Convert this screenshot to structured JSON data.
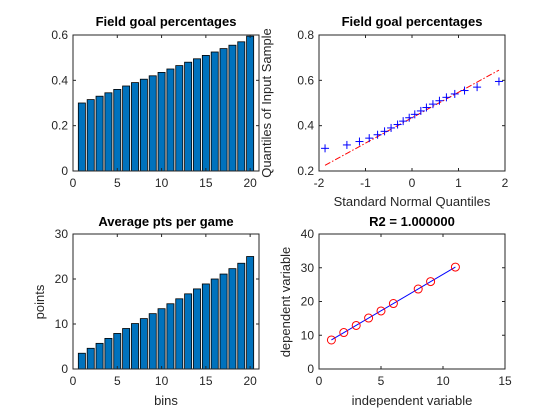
{
  "chart_data": [
    {
      "type": "bar",
      "title": "Field goal percentages",
      "xlabel": "",
      "ylabel": "",
      "x": [
        1,
        2,
        3,
        4,
        5,
        6,
        7,
        8,
        9,
        10,
        11,
        12,
        13,
        14,
        15,
        16,
        17,
        18,
        19,
        20
      ],
      "values": [
        0.3,
        0.315,
        0.33,
        0.345,
        0.36,
        0.375,
        0.39,
        0.405,
        0.42,
        0.435,
        0.45,
        0.465,
        0.48,
        0.495,
        0.51,
        0.525,
        0.54,
        0.555,
        0.57,
        0.595
      ],
      "xlim": [
        0,
        21
      ],
      "ylim": [
        0,
        0.6
      ],
      "xticks": [
        "0",
        "5",
        "10",
        "15",
        "20"
      ],
      "yticks": [
        "0",
        "0.2",
        "0.4",
        "0.6"
      ],
      "bar_color": "#0072BD"
    },
    {
      "type": "scatter",
      "title": "Field goal percentages",
      "xlabel": "Standard Normal Quantiles",
      "ylabel": "Quantiles of Input Sample",
      "x": [
        -1.87,
        -1.4,
        -1.13,
        -0.92,
        -0.74,
        -0.59,
        -0.45,
        -0.31,
        -0.19,
        -0.06,
        0.06,
        0.19,
        0.31,
        0.45,
        0.59,
        0.74,
        0.92,
        1.13,
        1.4,
        1.87
      ],
      "y": [
        0.3,
        0.315,
        0.33,
        0.345,
        0.36,
        0.375,
        0.39,
        0.405,
        0.42,
        0.435,
        0.45,
        0.465,
        0.48,
        0.495,
        0.51,
        0.525,
        0.54,
        0.555,
        0.57,
        0.595
      ],
      "reference_line": {
        "x": [
          -1.87,
          1.87
        ],
        "y": [
          0.225,
          0.645
        ]
      },
      "xlim": [
        -2,
        2
      ],
      "ylim": [
        0.2,
        0.8
      ],
      "xticks": [
        "-2",
        "-1",
        "0",
        "1",
        "2"
      ],
      "yticks": [
        "0.2",
        "0.4",
        "0.6",
        "0.8"
      ],
      "marker_color": "#0000FF",
      "line_color": "#FF0000"
    },
    {
      "type": "bar",
      "title": "Average pts per game",
      "xlabel": "bins",
      "ylabel": "points",
      "x": [
        1,
        2,
        3,
        4,
        5,
        6,
        7,
        8,
        9,
        10,
        11,
        12,
        13,
        14,
        15,
        16,
        17,
        18,
        19,
        20
      ],
      "values": [
        3.5,
        4.6,
        5.7,
        6.8,
        7.9,
        9.0,
        10.1,
        11.2,
        12.3,
        13.4,
        14.5,
        15.6,
        16.7,
        17.8,
        18.9,
        20.0,
        21.1,
        22.3,
        23.5,
        25.0
      ],
      "xlim": [
        0,
        21
      ],
      "ylim": [
        0,
        30
      ],
      "xticks": [
        "0",
        "5",
        "10",
        "15",
        "20"
      ],
      "yticks": [
        "0",
        "10",
        "20",
        "30"
      ],
      "bar_color": "#0072BD"
    },
    {
      "type": "scatter",
      "title": "R2 = 1.000000",
      "xlabel": "independent variable",
      "ylabel": "dependent variable",
      "x": [
        1,
        2,
        3,
        4,
        5,
        6,
        8,
        9,
        11
      ],
      "y": [
        8.6,
        10.8,
        12.9,
        15.1,
        17.2,
        19.4,
        23.7,
        25.9,
        30.2
      ],
      "fit_line": {
        "x": [
          1,
          11
        ],
        "y": [
          8.6,
          30.2
        ]
      },
      "xlim": [
        0,
        15
      ],
      "ylim": [
        0,
        40
      ],
      "xticks": [
        "0",
        "5",
        "10",
        "15"
      ],
      "yticks": [
        "0",
        "10",
        "20",
        "30",
        "40"
      ],
      "marker_color": "#FF0000",
      "line_color": "#0000FF"
    }
  ]
}
